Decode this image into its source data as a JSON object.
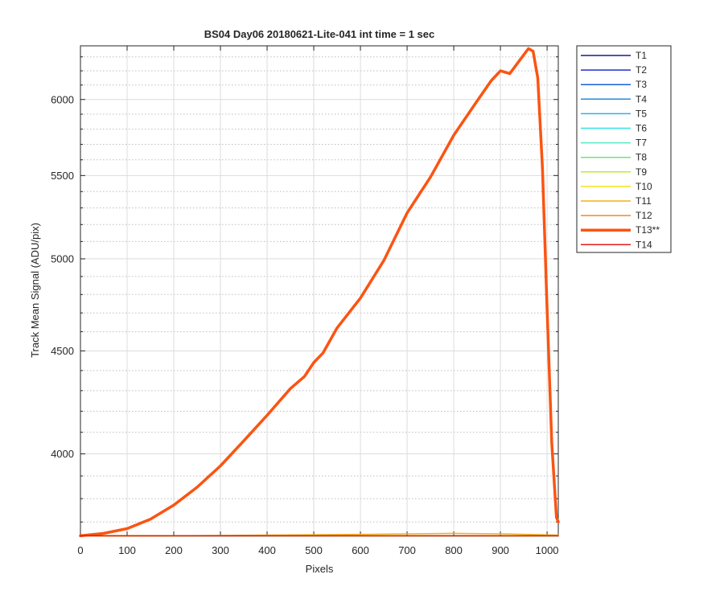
{
  "chart_data": {
    "type": "line",
    "title": "BS04 Day06 20180621-Lite-041 int time = 1 sec",
    "xlabel": "Pixels",
    "ylabel": "Track Mean Signal (ADU/pix)",
    "xlim": [
      0,
      1024
    ],
    "ylim": [
      3640,
      6380
    ],
    "y_scale": "log",
    "grid": true,
    "minor_grid": true,
    "legend_position": "outside-right",
    "x_ticks": [
      0,
      100,
      200,
      300,
      400,
      500,
      600,
      700,
      800,
      900,
      1000
    ],
    "y_ticks": [
      4000,
      4500,
      5000,
      5500,
      6000
    ],
    "y_minor_ticks": [
      3700,
      3800,
      3900,
      4100,
      4200,
      4300,
      4400,
      4600,
      4700,
      4800,
      4900,
      5100,
      5200,
      5300,
      5400,
      5600,
      5700,
      5800,
      5900,
      6100,
      6200,
      6300
    ],
    "series": [
      {
        "name": "T1",
        "color": "#1a1a8c",
        "width": 1.5,
        "x": [
          0,
          1024
        ],
        "y": [
          3642,
          3642
        ]
      },
      {
        "name": "T2",
        "color": "#1f2fc9",
        "width": 1.5,
        "x": [
          0,
          1024
        ],
        "y": [
          3642,
          3642
        ]
      },
      {
        "name": "T3",
        "color": "#1b5fd6",
        "width": 1.5,
        "x": [
          0,
          1024
        ],
        "y": [
          3642,
          3642
        ]
      },
      {
        "name": "T4",
        "color": "#1f8ddb",
        "width": 1.5,
        "x": [
          0,
          1024
        ],
        "y": [
          3642,
          3642
        ]
      },
      {
        "name": "T5",
        "color": "#26b6e8",
        "width": 1.5,
        "x": [
          0,
          1024
        ],
        "y": [
          3642,
          3642
        ]
      },
      {
        "name": "T6",
        "color": "#33e2ea",
        "width": 1.5,
        "x": [
          0,
          1024
        ],
        "y": [
          3642,
          3642
        ]
      },
      {
        "name": "T7",
        "color": "#55e6c4",
        "width": 1.5,
        "x": [
          0,
          1024
        ],
        "y": [
          3642,
          3642
        ]
      },
      {
        "name": "T8",
        "color": "#6ee47f",
        "width": 1.5,
        "x": [
          0,
          1024
        ],
        "y": [
          3642,
          3642
        ]
      },
      {
        "name": "T9",
        "color": "#b8ec3c",
        "width": 1.5,
        "x": [
          0,
          1024
        ],
        "y": [
          3642,
          3642
        ]
      },
      {
        "name": "T10",
        "color": "#f2e21a",
        "width": 1.5,
        "x": [
          0,
          1024
        ],
        "y": [
          3642,
          3642
        ]
      },
      {
        "name": "T11",
        "color": "#f2b11a",
        "width": 1.5,
        "x": [
          0,
          200,
          400,
          600,
          800,
          900,
          1024
        ],
        "y": [
          3641,
          3642,
          3645,
          3648,
          3652,
          3650,
          3645
        ]
      },
      {
        "name": "T12",
        "color": "#f28a1e",
        "width": 1.5,
        "x": [
          0,
          1024
        ],
        "y": [
          3642,
          3642
        ]
      },
      {
        "name": "T13**",
        "color": "#fb5412",
        "width": 3.5,
        "x": [
          0,
          50,
          100,
          150,
          200,
          250,
          300,
          350,
          400,
          450,
          480,
          500,
          520,
          550,
          600,
          650,
          700,
          750,
          800,
          850,
          880,
          900,
          920,
          940,
          960,
          970,
          980,
          990,
          1000,
          1010,
          1020,
          1024
        ],
        "y": [
          3642,
          3652,
          3672,
          3712,
          3772,
          3850,
          3945,
          4060,
          4180,
          4310,
          4370,
          4440,
          4490,
          4620,
          4780,
          4990,
          5270,
          5490,
          5760,
          5990,
          6130,
          6200,
          6180,
          6270,
          6360,
          6340,
          6150,
          5550,
          4720,
          4050,
          3720,
          3700
        ]
      },
      {
        "name": "T14",
        "color": "#e31a1c",
        "width": 1.5,
        "x": [
          0,
          1024
        ],
        "y": [
          3642,
          3642
        ]
      }
    ]
  }
}
